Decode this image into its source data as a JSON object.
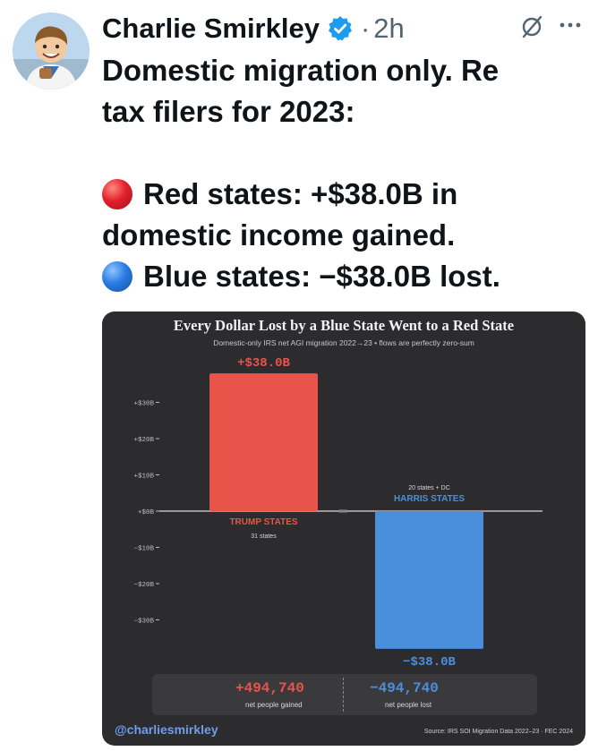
{
  "post": {
    "author_name": "Charlie Smirkley",
    "separator": "·",
    "time": "2h",
    "text_lines": [
      "Domestic migration only. Re",
      "tax filers for 2023:"
    ],
    "red_line": "Red states: +$38.0B in",
    "red_line2": "domestic income gained.",
    "blue_line": "Blue states: −$38.0B lost."
  },
  "media": {
    "title": "Every Dollar Lost by a Blue State Went to a Red State",
    "subtitle": "Domestic-only IRS net AGI migration 2022→23 • flows are perfectly zero-sum",
    "handle": "@charliesmirkley",
    "source": "Source: IRS SOI Migration Data 2022–23 · FEC 2024",
    "stats": {
      "red_value": "+494,740",
      "red_label": "net people gained",
      "blue_value": "−494,740",
      "blue_label": "net people lost"
    }
  },
  "chart_data": {
    "type": "bar",
    "title": "Every Dollar Lost by a Blue State Went to a Red State",
    "subtitle": "Domestic-only IRS net AGI migration 2022→23 • flows are perfectly zero-sum",
    "categories": [
      "TRUMP STATES",
      "HARRIS STATES"
    ],
    "category_notes": [
      "31 states",
      "20 states + DC"
    ],
    "values": [
      38.0,
      -38.0
    ],
    "value_labels": [
      "+$38.0B",
      "−$38.0B"
    ],
    "colors": [
      "#e8534a",
      "#4a8fdc"
    ],
    "ylim": [
      -38,
      38
    ],
    "yticks": [
      30,
      20,
      10,
      0,
      -10,
      -20,
      -30
    ],
    "ytick_labels": [
      "+$30B",
      "+$20B",
      "+$10B",
      "+$0B",
      "−$10B",
      "−$20B",
      "−$30B"
    ],
    "grid": false
  },
  "colors": {
    "red": "#e8534a",
    "blue": "#4a8fdc",
    "verified": "#1d9bf0"
  }
}
